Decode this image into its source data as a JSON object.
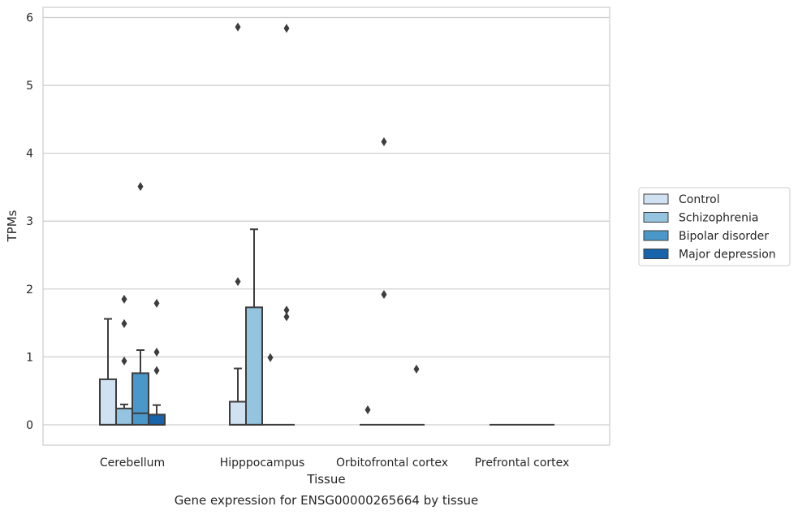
{
  "chart_data": {
    "type": "box",
    "caption": "Gene expression for ENSG00000265664 by tissue",
    "xlabel": "Tissue",
    "ylabel": "TPMs",
    "ylim": [
      -0.3,
      6.15
    ],
    "yticks": [
      0,
      1,
      2,
      3,
      4,
      5,
      6
    ],
    "grid": true,
    "legend_position": "right",
    "categories": [
      "Cerebellum",
      "Hipppocampus",
      "Orbitofrontal cortex",
      "Prefrontal cortex"
    ],
    "series": [
      {
        "name": "Control",
        "color": "#d0e1f2",
        "boxes": [
          {
            "q1": 0,
            "median": 0,
            "q3": 0.67,
            "whisker_low": 0,
            "whisker_high": 1.56,
            "outliers": []
          },
          {
            "q1": 0,
            "median": 0,
            "q3": 0.34,
            "whisker_low": 0,
            "whisker_high": 0.83,
            "outliers": [
              2.11,
              5.86
            ]
          },
          {
            "q1": 0,
            "median": 0,
            "q3": 0,
            "whisker_low": 0,
            "whisker_high": 0,
            "outliers": [
              0.22
            ]
          },
          {
            "q1": 0,
            "median": 0,
            "q3": 0,
            "whisker_low": 0,
            "whisker_high": 0,
            "outliers": []
          }
        ]
      },
      {
        "name": "Schizophrenia",
        "color": "#94c4df",
        "boxes": [
          {
            "q1": 0,
            "median": 0,
            "q3": 0.24,
            "whisker_low": 0,
            "whisker_high": 0.3,
            "outliers": [
              0.94,
              1.49,
              1.85
            ]
          },
          {
            "q1": 0,
            "median": 0,
            "q3": 1.73,
            "whisker_low": 0,
            "whisker_high": 2.88,
            "outliers": []
          },
          {
            "q1": 0,
            "median": 0,
            "q3": 0,
            "whisker_low": 0,
            "whisker_high": 0,
            "outliers": [
              1.92,
              4.17
            ]
          },
          {
            "q1": 0,
            "median": 0,
            "q3": 0,
            "whisker_low": 0,
            "whisker_high": 0,
            "outliers": []
          }
        ]
      },
      {
        "name": "Bipolar disorder",
        "color": "#4a98c9",
        "boxes": [
          {
            "q1": 0,
            "median": 0.17,
            "q3": 0.76,
            "whisker_low": 0,
            "whisker_high": 1.1,
            "outliers": [
              3.51
            ]
          },
          {
            "q1": 0,
            "median": 0,
            "q3": 0,
            "whisker_low": 0,
            "whisker_high": 0,
            "outliers": [
              0.99
            ]
          },
          {
            "q1": 0,
            "median": 0,
            "q3": 0,
            "whisker_low": 0,
            "whisker_high": 0,
            "outliers": []
          },
          {
            "q1": 0,
            "median": 0,
            "q3": 0,
            "whisker_low": 0,
            "whisker_high": 0,
            "outliers": []
          }
        ]
      },
      {
        "name": "Major depression",
        "color": "#1764ab",
        "boxes": [
          {
            "q1": 0,
            "median": 0,
            "q3": 0.15,
            "whisker_low": 0,
            "whisker_high": 0.29,
            "outliers": [
              0.8,
              1.07,
              1.79
            ]
          },
          {
            "q1": 0,
            "median": 0,
            "q3": 0,
            "whisker_low": 0,
            "whisker_high": 0,
            "outliers": [
              1.59,
              1.69,
              5.84
            ]
          },
          {
            "q1": 0,
            "median": 0,
            "q3": 0,
            "whisker_low": 0,
            "whisker_high": 0,
            "outliers": [
              0.82
            ]
          },
          {
            "q1": 0,
            "median": 0,
            "q3": 0,
            "whisker_low": 0,
            "whisker_high": 0,
            "outliers": []
          }
        ]
      }
    ]
  }
}
